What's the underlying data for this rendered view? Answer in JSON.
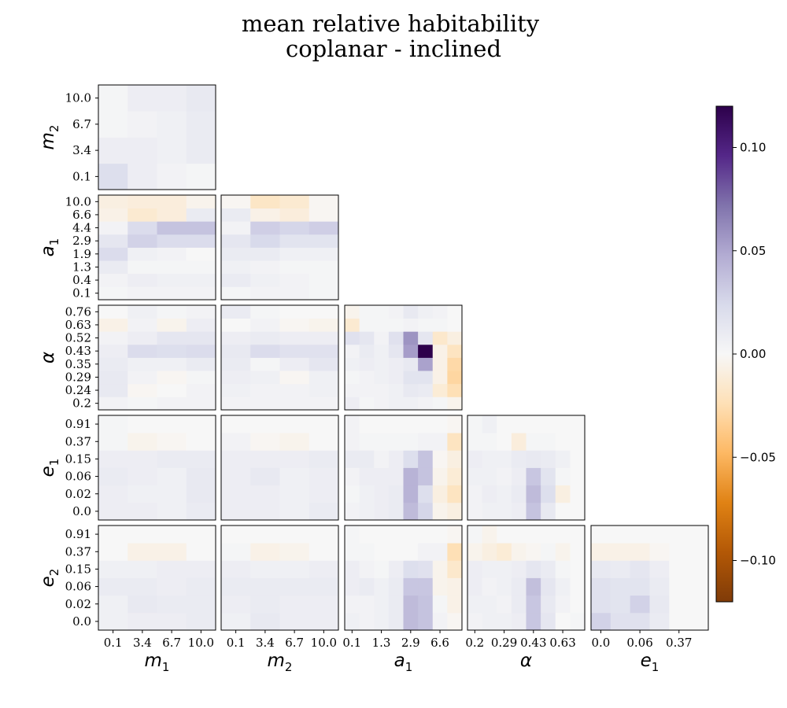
{
  "chart_data": {
    "type": "heatmap",
    "title_lines": [
      "mean relative habitability",
      "coplanar - inclined"
    ],
    "variables": [
      {
        "base": "m",
        "sub": "1",
        "ticks": [
          "0.1",
          "3.4",
          "6.7",
          "10.0"
        ]
      },
      {
        "base": "m",
        "sub": "2",
        "ticks": [
          "0.1",
          "3.4",
          "6.7",
          "10.0"
        ]
      },
      {
        "base": "a",
        "sub": "1",
        "ticks": [
          "0.1",
          "0.4",
          "1.3",
          "1.9",
          "2.9",
          "4.4",
          "6.6",
          "10.0"
        ],
        "x_ticks": [
          "0.1",
          "1.3",
          "2.9",
          "6.6"
        ]
      },
      {
        "base": "α",
        "sub": "",
        "ticks": [
          "0.2",
          "0.24",
          "0.29",
          "0.35",
          "0.43",
          "0.52",
          "0.63",
          "0.76"
        ],
        "x_ticks": [
          "0.2",
          "0.29",
          "0.43",
          "0.63"
        ]
      },
      {
        "base": "e",
        "sub": "1",
        "ticks": [
          "0.0",
          "0.02",
          "0.06",
          "0.15",
          "0.37",
          "0.91"
        ],
        "x_ticks": [
          "0.0",
          "0.06",
          "0.37"
        ]
      },
      {
        "base": "e",
        "sub": "2",
        "ticks": [
          "0.0",
          "0.02",
          "0.06",
          "0.15",
          "0.37",
          "0.91"
        ]
      }
    ],
    "colorbar": {
      "colormap": "PuOr",
      "range": [
        -0.12,
        0.12
      ],
      "ticks": [
        "0.10",
        "0.05",
        "0.00",
        "−0.05",
        "−0.10"
      ]
    },
    "panels": [
      {
        "row": 0,
        "col": 0,
        "x": "m1",
        "y": "m2",
        "values": [
          [
            0.02,
            0.008,
            0.004,
            0.002
          ],
          [
            0.008,
            0.008,
            0.006,
            0.01
          ],
          [
            0.002,
            0.004,
            0.006,
            0.01
          ],
          [
            0.002,
            0.008,
            0.008,
            0.012
          ]
        ]
      },
      {
        "row": 1,
        "col": 0,
        "x": "m1",
        "y": "a1",
        "values": [
          [
            0.002,
            0.004,
            0.004,
            0.004
          ],
          [
            0.004,
            0.008,
            0.006,
            0.006
          ],
          [
            0.01,
            0.002,
            0.002,
            0.002
          ],
          [
            0.022,
            0.006,
            0.004,
            0.0
          ],
          [
            0.014,
            0.028,
            0.022,
            0.022
          ],
          [
            0.004,
            0.022,
            0.036,
            0.036
          ],
          [
            -0.006,
            -0.014,
            -0.01,
            0.01
          ],
          [
            -0.008,
            -0.01,
            -0.01,
            -0.004
          ]
        ]
      },
      {
        "row": 1,
        "col": 1,
        "x": "m2",
        "y": "a1",
        "values": [
          [
            0.002,
            0.004,
            0.004,
            0.002
          ],
          [
            0.01,
            0.006,
            0.004,
            0.002
          ],
          [
            0.006,
            0.004,
            0.002,
            0.002
          ],
          [
            0.01,
            0.01,
            0.006,
            0.006
          ],
          [
            0.014,
            0.024,
            0.016,
            0.016
          ],
          [
            0.004,
            0.03,
            0.026,
            0.03
          ],
          [
            0.01,
            -0.006,
            -0.01,
            -0.002
          ],
          [
            -0.002,
            -0.018,
            -0.014,
            -0.002
          ]
        ]
      },
      {
        "row": 2,
        "col": 0,
        "x": "m1",
        "y": "alpha",
        "values": [
          [
            0.004,
            0.002,
            0.004,
            0.004
          ],
          [
            0.012,
            -0.002,
            0.0,
            0.004
          ],
          [
            0.012,
            0.004,
            -0.002,
            0.002
          ],
          [
            0.01,
            0.006,
            0.006,
            0.01
          ],
          [
            0.008,
            0.022,
            0.02,
            0.022
          ],
          [
            0.004,
            0.008,
            0.014,
            0.014
          ],
          [
            -0.006,
            0.004,
            -0.004,
            0.008
          ],
          [
            0.0,
            0.006,
            0.002,
            0.004
          ]
        ]
      },
      {
        "row": 2,
        "col": 1,
        "x": "m2",
        "y": "alpha",
        "values": [
          [
            0.004,
            0.004,
            0.004,
            0.004
          ],
          [
            0.006,
            0.004,
            0.004,
            0.006
          ],
          [
            0.008,
            0.006,
            -0.002,
            0.006
          ],
          [
            0.01,
            0.002,
            0.008,
            0.014
          ],
          [
            0.012,
            0.022,
            0.018,
            0.018
          ],
          [
            0.008,
            0.01,
            0.008,
            0.008
          ],
          [
            0.0,
            0.004,
            -0.002,
            -0.004
          ],
          [
            0.01,
            0.002,
            0.0,
            0.0
          ]
        ]
      },
      {
        "row": 2,
        "col": 2,
        "x": "a1",
        "y": "alpha",
        "values": [
          [
            0.008,
            0.002,
            0.004,
            0.006,
            0.006,
            0.004,
            0.002,
            -0.004
          ],
          [
            0.004,
            0.004,
            0.004,
            0.006,
            0.012,
            0.01,
            -0.012,
            -0.024
          ],
          [
            0.002,
            0.004,
            0.006,
            0.008,
            0.016,
            0.016,
            -0.006,
            -0.03
          ],
          [
            0.006,
            0.008,
            0.006,
            0.008,
            0.012,
            0.052,
            -0.006,
            -0.028
          ],
          [
            0.004,
            0.01,
            0.006,
            0.014,
            0.054,
            0.122,
            -0.006,
            -0.02
          ],
          [
            0.018,
            0.014,
            0.004,
            0.018,
            0.058,
            0.014,
            -0.016,
            -0.008
          ],
          [
            -0.014,
            0.002,
            0.002,
            0.002,
            0.004,
            0.002,
            0.002,
            0.0
          ],
          [
            -0.004,
            0.002,
            0.002,
            0.004,
            0.012,
            0.006,
            0.004,
            0.0
          ]
        ]
      },
      {
        "row": 3,
        "col": 0,
        "x": "m1",
        "y": "e1",
        "values": [
          [
            0.008,
            0.008,
            0.006,
            0.01
          ],
          [
            0.008,
            0.006,
            0.006,
            0.012
          ],
          [
            0.01,
            0.008,
            0.006,
            0.012
          ],
          [
            0.008,
            0.008,
            0.01,
            0.01
          ],
          [
            0.002,
            -0.004,
            -0.002,
            0.0
          ],
          [
            0.002,
            0.0,
            0.0,
            0.0
          ]
        ]
      },
      {
        "row": 3,
        "col": 1,
        "x": "m2",
        "y": "e1",
        "values": [
          [
            0.008,
            0.008,
            0.006,
            0.01
          ],
          [
            0.008,
            0.008,
            0.006,
            0.008
          ],
          [
            0.008,
            0.012,
            0.006,
            0.008
          ],
          [
            0.008,
            0.008,
            0.008,
            0.01
          ],
          [
            0.004,
            -0.002,
            -0.004,
            0.0
          ],
          [
            0.0,
            0.0,
            0.0,
            0.0
          ]
        ]
      },
      {
        "row": 3,
        "col": 2,
        "x": "a1",
        "y": "e1",
        "values": [
          [
            0.004,
            0.006,
            0.008,
            0.01,
            0.04,
            0.026,
            -0.004,
            -0.008
          ],
          [
            0.002,
            0.006,
            0.008,
            0.01,
            0.044,
            0.02,
            -0.008,
            -0.02
          ],
          [
            0.004,
            0.008,
            0.008,
            0.008,
            0.044,
            0.036,
            -0.004,
            -0.012
          ],
          [
            0.01,
            0.01,
            0.004,
            0.008,
            0.02,
            0.036,
            -0.002,
            -0.008
          ],
          [
            0.004,
            0.002,
            0.002,
            0.002,
            0.002,
            0.004,
            0.004,
            -0.02
          ],
          [
            0.004,
            0.0,
            0.0,
            0.0,
            0.0,
            0.0,
            0.0,
            -0.002
          ]
        ]
      },
      {
        "row": 3,
        "col": 3,
        "x": "alpha",
        "y": "e1",
        "values": [
          [
            0.004,
            0.006,
            0.006,
            0.008,
            0.036,
            0.012,
            0.0,
            0.0
          ],
          [
            0.004,
            0.008,
            0.006,
            0.01,
            0.04,
            0.02,
            -0.008,
            0.0
          ],
          [
            0.006,
            0.006,
            0.004,
            0.008,
            0.034,
            0.016,
            0.002,
            0.0
          ],
          [
            0.008,
            0.006,
            0.006,
            0.01,
            0.012,
            0.01,
            0.006,
            0.0
          ],
          [
            0.002,
            0.002,
            0.0,
            -0.01,
            0.002,
            0.002,
            0.0,
            0.0
          ],
          [
            0.002,
            0.006,
            0.0,
            0.0,
            0.0,
            0.0,
            0.0,
            0.0
          ]
        ]
      },
      {
        "row": 4,
        "col": 0,
        "x": "m1",
        "y": "e2",
        "values": [
          [
            0.006,
            0.008,
            0.008,
            0.01
          ],
          [
            0.006,
            0.012,
            0.01,
            0.01
          ],
          [
            0.01,
            0.01,
            0.008,
            0.01
          ],
          [
            0.006,
            0.006,
            0.008,
            0.008
          ],
          [
            0.0,
            -0.006,
            -0.006,
            0.0
          ],
          [
            0.0,
            0.0,
            0.0,
            0.0
          ]
        ]
      },
      {
        "row": 4,
        "col": 1,
        "x": "m2",
        "y": "e2",
        "values": [
          [
            0.006,
            0.012,
            0.008,
            0.008
          ],
          [
            0.008,
            0.01,
            0.008,
            0.008
          ],
          [
            0.01,
            0.01,
            0.01,
            0.01
          ],
          [
            0.008,
            0.006,
            0.006,
            0.008
          ],
          [
            0.002,
            -0.006,
            -0.004,
            0.0
          ],
          [
            0.0,
            0.0,
            0.0,
            0.0
          ]
        ]
      },
      {
        "row": 4,
        "col": 2,
        "x": "a1",
        "y": "e2",
        "values": [
          [
            0.006,
            0.004,
            0.006,
            0.01,
            0.04,
            0.036,
            0.004,
            -0.002
          ],
          [
            0.004,
            0.004,
            0.006,
            0.01,
            0.04,
            0.036,
            0.002,
            -0.006
          ],
          [
            0.008,
            0.01,
            0.006,
            0.01,
            0.034,
            0.034,
            -0.004,
            -0.006
          ],
          [
            0.008,
            0.004,
            0.002,
            0.008,
            0.02,
            0.018,
            -0.004,
            -0.016
          ],
          [
            0.002,
            0.002,
            0.0,
            0.0,
            0.0,
            0.004,
            0.004,
            -0.024
          ],
          [
            0.002,
            0.0,
            0.0,
            0.0,
            0.0,
            0.0,
            0.0,
            -0.002
          ]
        ]
      },
      {
        "row": 4,
        "col": 3,
        "x": "alpha",
        "y": "e2",
        "values": [
          [
            0.004,
            0.006,
            0.006,
            0.008,
            0.034,
            0.014,
            0.0,
            0.002
          ],
          [
            0.006,
            0.006,
            0.004,
            0.01,
            0.034,
            0.012,
            0.004,
            0.0
          ],
          [
            0.008,
            0.004,
            0.006,
            0.01,
            0.038,
            0.014,
            0.006,
            0.0
          ],
          [
            0.008,
            0.006,
            0.006,
            0.008,
            0.014,
            0.01,
            0.002,
            0.0
          ],
          [
            -0.004,
            -0.008,
            -0.012,
            -0.004,
            -0.002,
            0.002,
            -0.004,
            0.0
          ],
          [
            0.002,
            -0.004,
            0.0,
            0.0,
            0.0,
            0.0,
            0.0,
            0.0
          ]
        ]
      },
      {
        "row": 4,
        "col": 4,
        "x": "e1",
        "y": "e2",
        "values": [
          [
            0.028,
            0.018,
            0.018,
            0.01,
            0.0,
            0.0
          ],
          [
            0.018,
            0.016,
            0.028,
            0.012,
            0.0,
            0.0
          ],
          [
            0.018,
            0.016,
            0.016,
            0.01,
            0.0,
            0.0
          ],
          [
            0.012,
            0.01,
            0.014,
            0.008,
            0.0,
            0.0
          ],
          [
            -0.006,
            -0.006,
            -0.006,
            -0.002,
            0.0,
            0.0
          ],
          [
            0.0,
            0.0,
            0.0,
            0.0,
            0.0,
            0.0
          ]
        ]
      }
    ]
  }
}
